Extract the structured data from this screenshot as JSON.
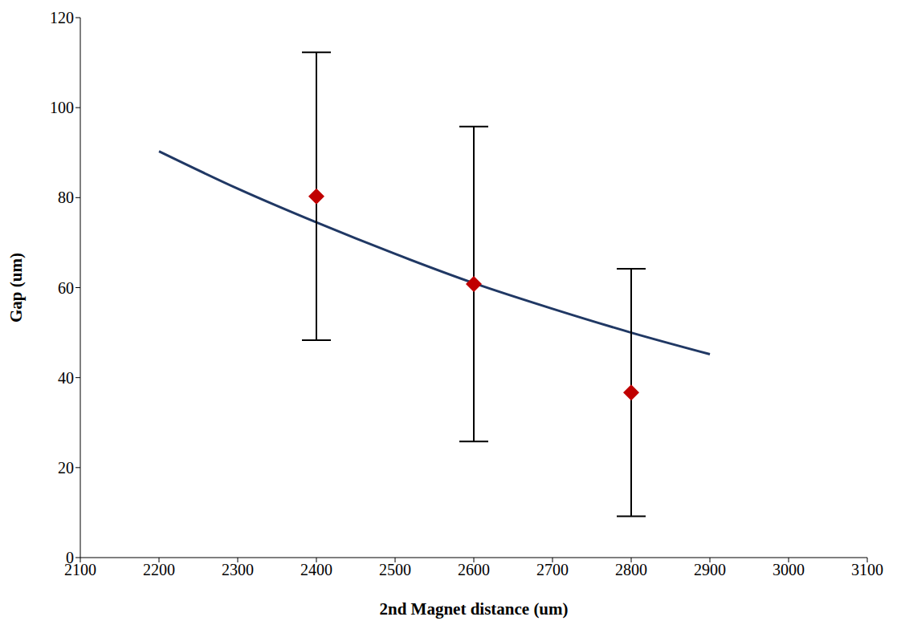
{
  "chart_data": {
    "type": "scatter",
    "x_label": "2nd Magnet distance (um)",
    "y_label": "Gap (um)",
    "xlim": [
      2100,
      3100
    ],
    "xticks": [
      2100,
      2200,
      2300,
      2400,
      2500,
      2600,
      2700,
      2800,
      2900,
      3000,
      3100
    ],
    "ylim": [
      0,
      120
    ],
    "yticks": [
      0,
      20,
      40,
      60,
      80,
      100,
      120
    ],
    "grid": false,
    "series": [
      {
        "type": "line",
        "color": "#203864",
        "line_style": "solid",
        "x": [
          2200,
          2300,
          2400,
          2500,
          2600,
          2700,
          2800,
          2900
        ],
        "values": [
          90.3,
          82.0,
          74.5,
          67.5,
          61.0,
          55.3,
          50.0,
          45.2
        ]
      },
      {
        "type": "scatter",
        "color": "#c00000",
        "marker": "diamond",
        "x": [
          2400,
          2600,
          2800
        ],
        "values": [
          80.3,
          60.8,
          36.7
        ],
        "error": [
          32,
          35,
          27.5
        ]
      }
    ]
  }
}
